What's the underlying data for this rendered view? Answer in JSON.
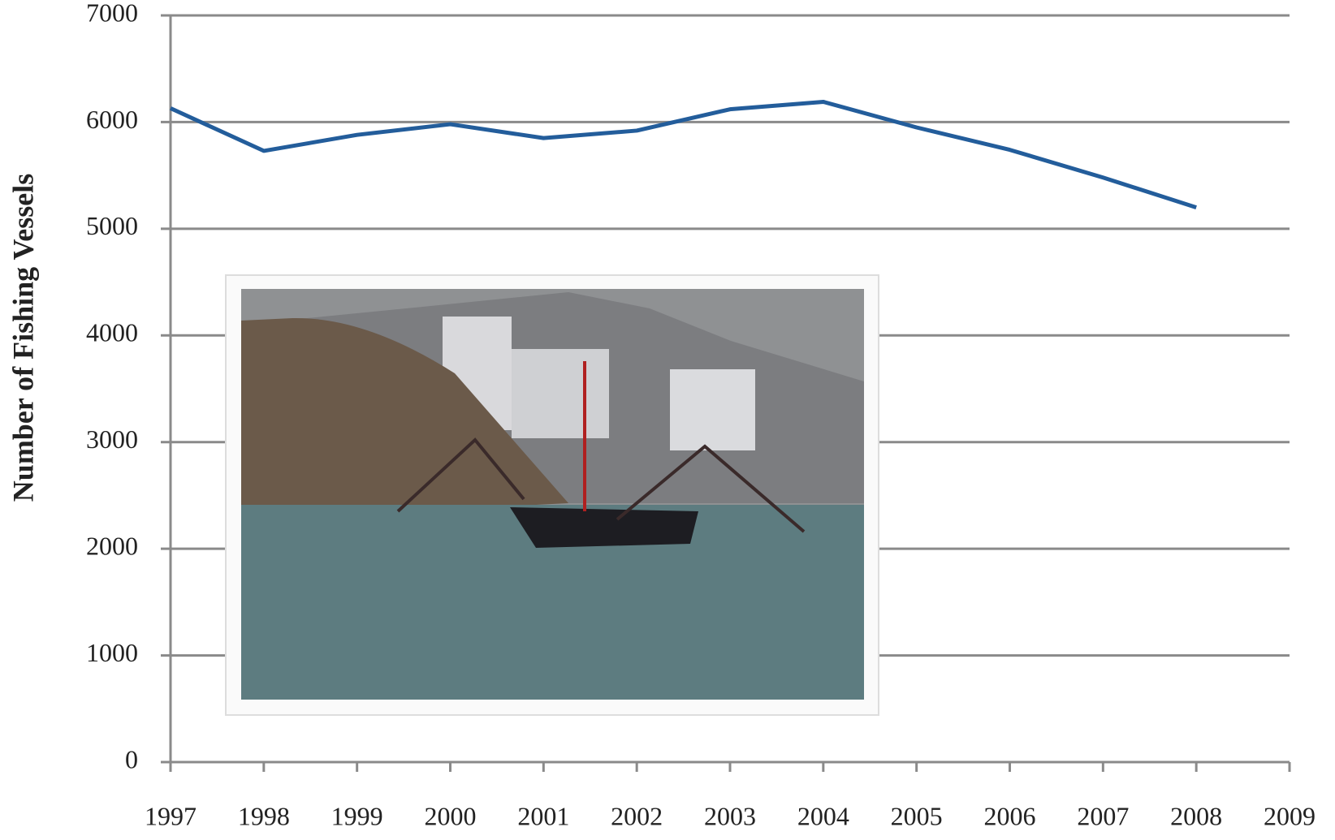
{
  "chart_data": {
    "type": "line",
    "y_label": "Number of Fishing Vessels",
    "x": [
      1997,
      1998,
      1999,
      2000,
      2001,
      2002,
      2003,
      2004,
      2005,
      2006,
      2007,
      2008,
      2009
    ],
    "series": [
      {
        "name": "Fishing vessels",
        "color": "#235d9b",
        "values": [
          6130,
          5730,
          5880,
          5980,
          5850,
          5920,
          6120,
          6190,
          5950,
          5740,
          5480,
          5200,
          null
        ]
      }
    ],
    "xlim": [
      1997,
      2009
    ],
    "xticks": [
      1997,
      1998,
      1999,
      2000,
      2001,
      2002,
      2003,
      2004,
      2005,
      2006,
      2007,
      2008,
      2009
    ],
    "ylim": [
      0,
      7000
    ],
    "yticks": [
      0,
      1000,
      2000,
      3000,
      4000,
      5000,
      6000,
      7000
    ],
    "grid": true
  }
}
